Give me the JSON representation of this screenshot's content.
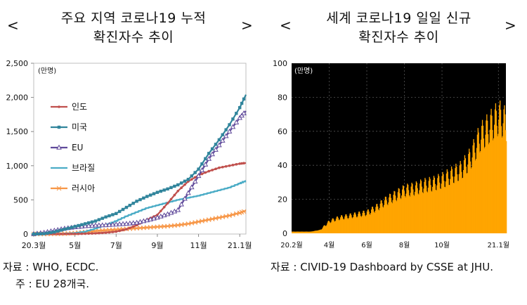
{
  "left": {
    "title_line1": "주요 지역 코로나19 누적",
    "title_line2": "확진자수 추이",
    "prev_symbol": "<",
    "next_symbol": ">",
    "source_text": "자료 : WHO, ECDC.",
    "note_text": "주 : EU 28개국."
  },
  "right": {
    "title_line1": "세계 코로나19 일일 신규",
    "title_line2": "확진자수 추이",
    "prev_symbol": "<",
    "next_symbol": ">",
    "source_text": "자료 : CIVID-19 Dashboard by CSSE at JHU."
  },
  "chart_data": [
    {
      "type": "line",
      "unit_label": "(만명)",
      "ylim": [
        0,
        2500
      ],
      "yticks": [
        "0",
        "500",
        "1,000",
        "1,500",
        "2,000",
        "2,500"
      ],
      "ytick_values": [
        0,
        500,
        1000,
        1500,
        2000,
        2500
      ],
      "xticks": [
        "20.3월",
        "5월",
        "7월",
        "9월",
        "11월",
        "21.1월"
      ],
      "xtick_values": [
        0,
        2,
        4,
        6,
        8,
        10
      ],
      "grid": false,
      "legend_position": "top-left",
      "x": [
        0,
        0.5,
        1,
        1.5,
        2,
        2.5,
        3,
        3.5,
        4,
        4.5,
        5,
        5.5,
        6,
        6.5,
        7,
        7.5,
        8,
        8.5,
        9,
        9.5,
        10,
        10.3
      ],
      "series": [
        {
          "name": "인도",
          "color": "#c0504d",
          "marker": "dot",
          "values": [
            0,
            0,
            0,
            1,
            2,
            5,
            10,
            20,
            35,
            70,
            130,
            210,
            280,
            450,
            630,
            770,
            860,
            920,
            970,
            1000,
            1030,
            1040
          ]
        },
        {
          "name": "미국",
          "color": "#31859c",
          "marker": "square",
          "values": [
            0,
            5,
            30,
            70,
            110,
            150,
            190,
            250,
            300,
            390,
            480,
            550,
            610,
            660,
            720,
            800,
            950,
            1180,
            1380,
            1600,
            1850,
            2040
          ]
        },
        {
          "name": "EU",
          "color": "#604a9b",
          "marker": "triangle",
          "values": [
            0,
            20,
            50,
            80,
            100,
            115,
            125,
            130,
            140,
            150,
            165,
            200,
            240,
            290,
            350,
            600,
            850,
            1100,
            1300,
            1500,
            1700,
            1800
          ]
        },
        {
          "name": "브라질",
          "color": "#4bacc6",
          "marker": "dash",
          "values": [
            0,
            0,
            2,
            5,
            15,
            35,
            80,
            130,
            190,
            260,
            320,
            380,
            420,
            460,
            500,
            530,
            560,
            600,
            640,
            680,
            740,
            780
          ]
        },
        {
          "name": "러시아",
          "color": "#f79646",
          "marker": "star",
          "values": [
            0,
            0,
            2,
            5,
            15,
            30,
            45,
            55,
            65,
            75,
            85,
            95,
            105,
            115,
            130,
            150,
            180,
            210,
            240,
            270,
            310,
            340
          ]
        }
      ]
    },
    {
      "type": "area",
      "unit_label": "(만명)",
      "ylim": [
        0,
        100
      ],
      "yticks": [
        "0",
        "20",
        "40",
        "60",
        "80",
        "100"
      ],
      "ytick_values": [
        0,
        20,
        40,
        60,
        80,
        100
      ],
      "xticks": [
        "20.2월",
        "4월",
        "6월",
        "8월",
        "10월",
        "21.1월"
      ],
      "xtick_values": [
        0,
        2,
        4,
        6,
        8,
        11
      ],
      "grid": true,
      "color": "#ffa500",
      "background": "#000000",
      "x": [
        0,
        1,
        1.5,
        2,
        2.5,
        3,
        3.5,
        4,
        4.5,
        5,
        5.5,
        6,
        6.5,
        7,
        7.5,
        8,
        8.5,
        9,
        9.5,
        10,
        10.5,
        11,
        11.4
      ],
      "values": [
        1,
        1,
        2,
        7,
        9,
        10,
        11,
        12,
        15,
        19,
        22,
        25,
        26,
        28,
        29,
        31,
        34,
        37,
        44,
        56,
        62,
        68,
        64
      ]
    }
  ]
}
